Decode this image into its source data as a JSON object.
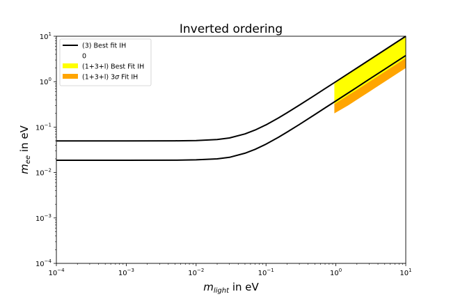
{
  "chart_data": {
    "type": "line",
    "title": "Inverted ordering",
    "xlabel": {
      "sym": "m",
      "sub": "light",
      "rest": " in eV"
    },
    "ylabel": {
      "sym": "m",
      "sub": "ee",
      "rest": " in eV"
    },
    "xscale": "log",
    "yscale": "log",
    "xlim": [
      0.0001,
      10
    ],
    "ylim": [
      0.0001,
      10
    ],
    "xticks": [
      {
        "value": 0.0001,
        "base": "10",
        "exp": "−4"
      },
      {
        "value": 0.001,
        "base": "10",
        "exp": "−3"
      },
      {
        "value": 0.01,
        "base": "10",
        "exp": "−2"
      },
      {
        "value": 0.1,
        "base": "10",
        "exp": "−1"
      },
      {
        "value": 1,
        "base": "10",
        "exp": "0"
      },
      {
        "value": 10,
        "base": "10",
        "exp": "1"
      }
    ],
    "yticks": [
      {
        "value": 0.0001,
        "base": "10",
        "exp": "−4"
      },
      {
        "value": 0.001,
        "base": "10",
        "exp": "−3"
      },
      {
        "value": 0.01,
        "base": "10",
        "exp": "−2"
      },
      {
        "value": 0.1,
        "base": "10",
        "exp": "−1"
      },
      {
        "value": 1,
        "base": "10",
        "exp": "0"
      },
      {
        "value": 10,
        "base": "10",
        "exp": "1"
      }
    ],
    "grid": false,
    "legend_position": "top-left",
    "legend": [
      {
        "label": "(3) Best fit IH",
        "style": "line",
        "color": "#000000"
      },
      {
        "label": "0",
        "style": "none",
        "color": "#ffffff"
      },
      {
        "label": "(1+3+l) Best Fit IH",
        "style": "patch",
        "color": "#ffff00"
      },
      {
        "label_pre": "(1+3+l) 3",
        "label_sym": "σ",
        "label_post": " Fit IH",
        "style": "patch",
        "color": "#ffa500"
      }
    ],
    "series": [
      {
        "style": "line",
        "color": "#000000",
        "x": [
          0.0001,
          0.001,
          0.005,
          0.01,
          0.02,
          0.03,
          0.05,
          0.07,
          0.1,
          0.15,
          0.2,
          0.3,
          0.5,
          0.7,
          1,
          2,
          3,
          5,
          7,
          10
        ],
        "y": [
          0.0495,
          0.0495,
          0.0498,
          0.0505,
          0.0533,
          0.0576,
          0.0707,
          0.0862,
          0.112,
          0.158,
          0.206,
          0.304,
          0.502,
          0.702,
          1.001,
          2.0,
          3.0,
          5.0,
          7.0,
          10.0
        ]
      },
      {
        "style": "line",
        "color": "#000000",
        "x": [
          0.0001,
          0.001,
          0.005,
          0.01,
          0.02,
          0.03,
          0.05,
          0.07,
          0.1,
          0.15,
          0.2,
          0.3,
          0.5,
          0.7,
          1,
          2,
          3,
          5,
          7,
          10
        ],
        "y": [
          0.0186,
          0.0186,
          0.0187,
          0.019,
          0.02,
          0.0216,
          0.0266,
          0.0324,
          0.0421,
          0.0596,
          0.0776,
          0.114,
          0.189,
          0.264,
          0.376,
          0.752,
          1.13,
          1.88,
          2.63,
          3.76
        ]
      },
      {
        "style": "band",
        "color": "#ffa500",
        "x": [
          0.95,
          1.5,
          2,
          3,
          5,
          7,
          10
        ],
        "upper": [
          0.34,
          0.52,
          0.69,
          1.03,
          1.72,
          2.4,
          3.45
        ],
        "lower": [
          0.2,
          0.3,
          0.4,
          0.6,
          1.0,
          1.4,
          2.0
        ]
      },
      {
        "style": "band",
        "color": "#ffff00",
        "x": [
          0.95,
          1.5,
          2,
          3,
          5,
          7,
          10
        ],
        "upper": [
          0.9,
          1.5,
          2.0,
          3.0,
          5.0,
          7.0,
          10.0
        ],
        "lower": [
          0.32,
          0.5,
          0.66,
          0.99,
          1.65,
          2.3,
          3.3
        ]
      }
    ]
  }
}
